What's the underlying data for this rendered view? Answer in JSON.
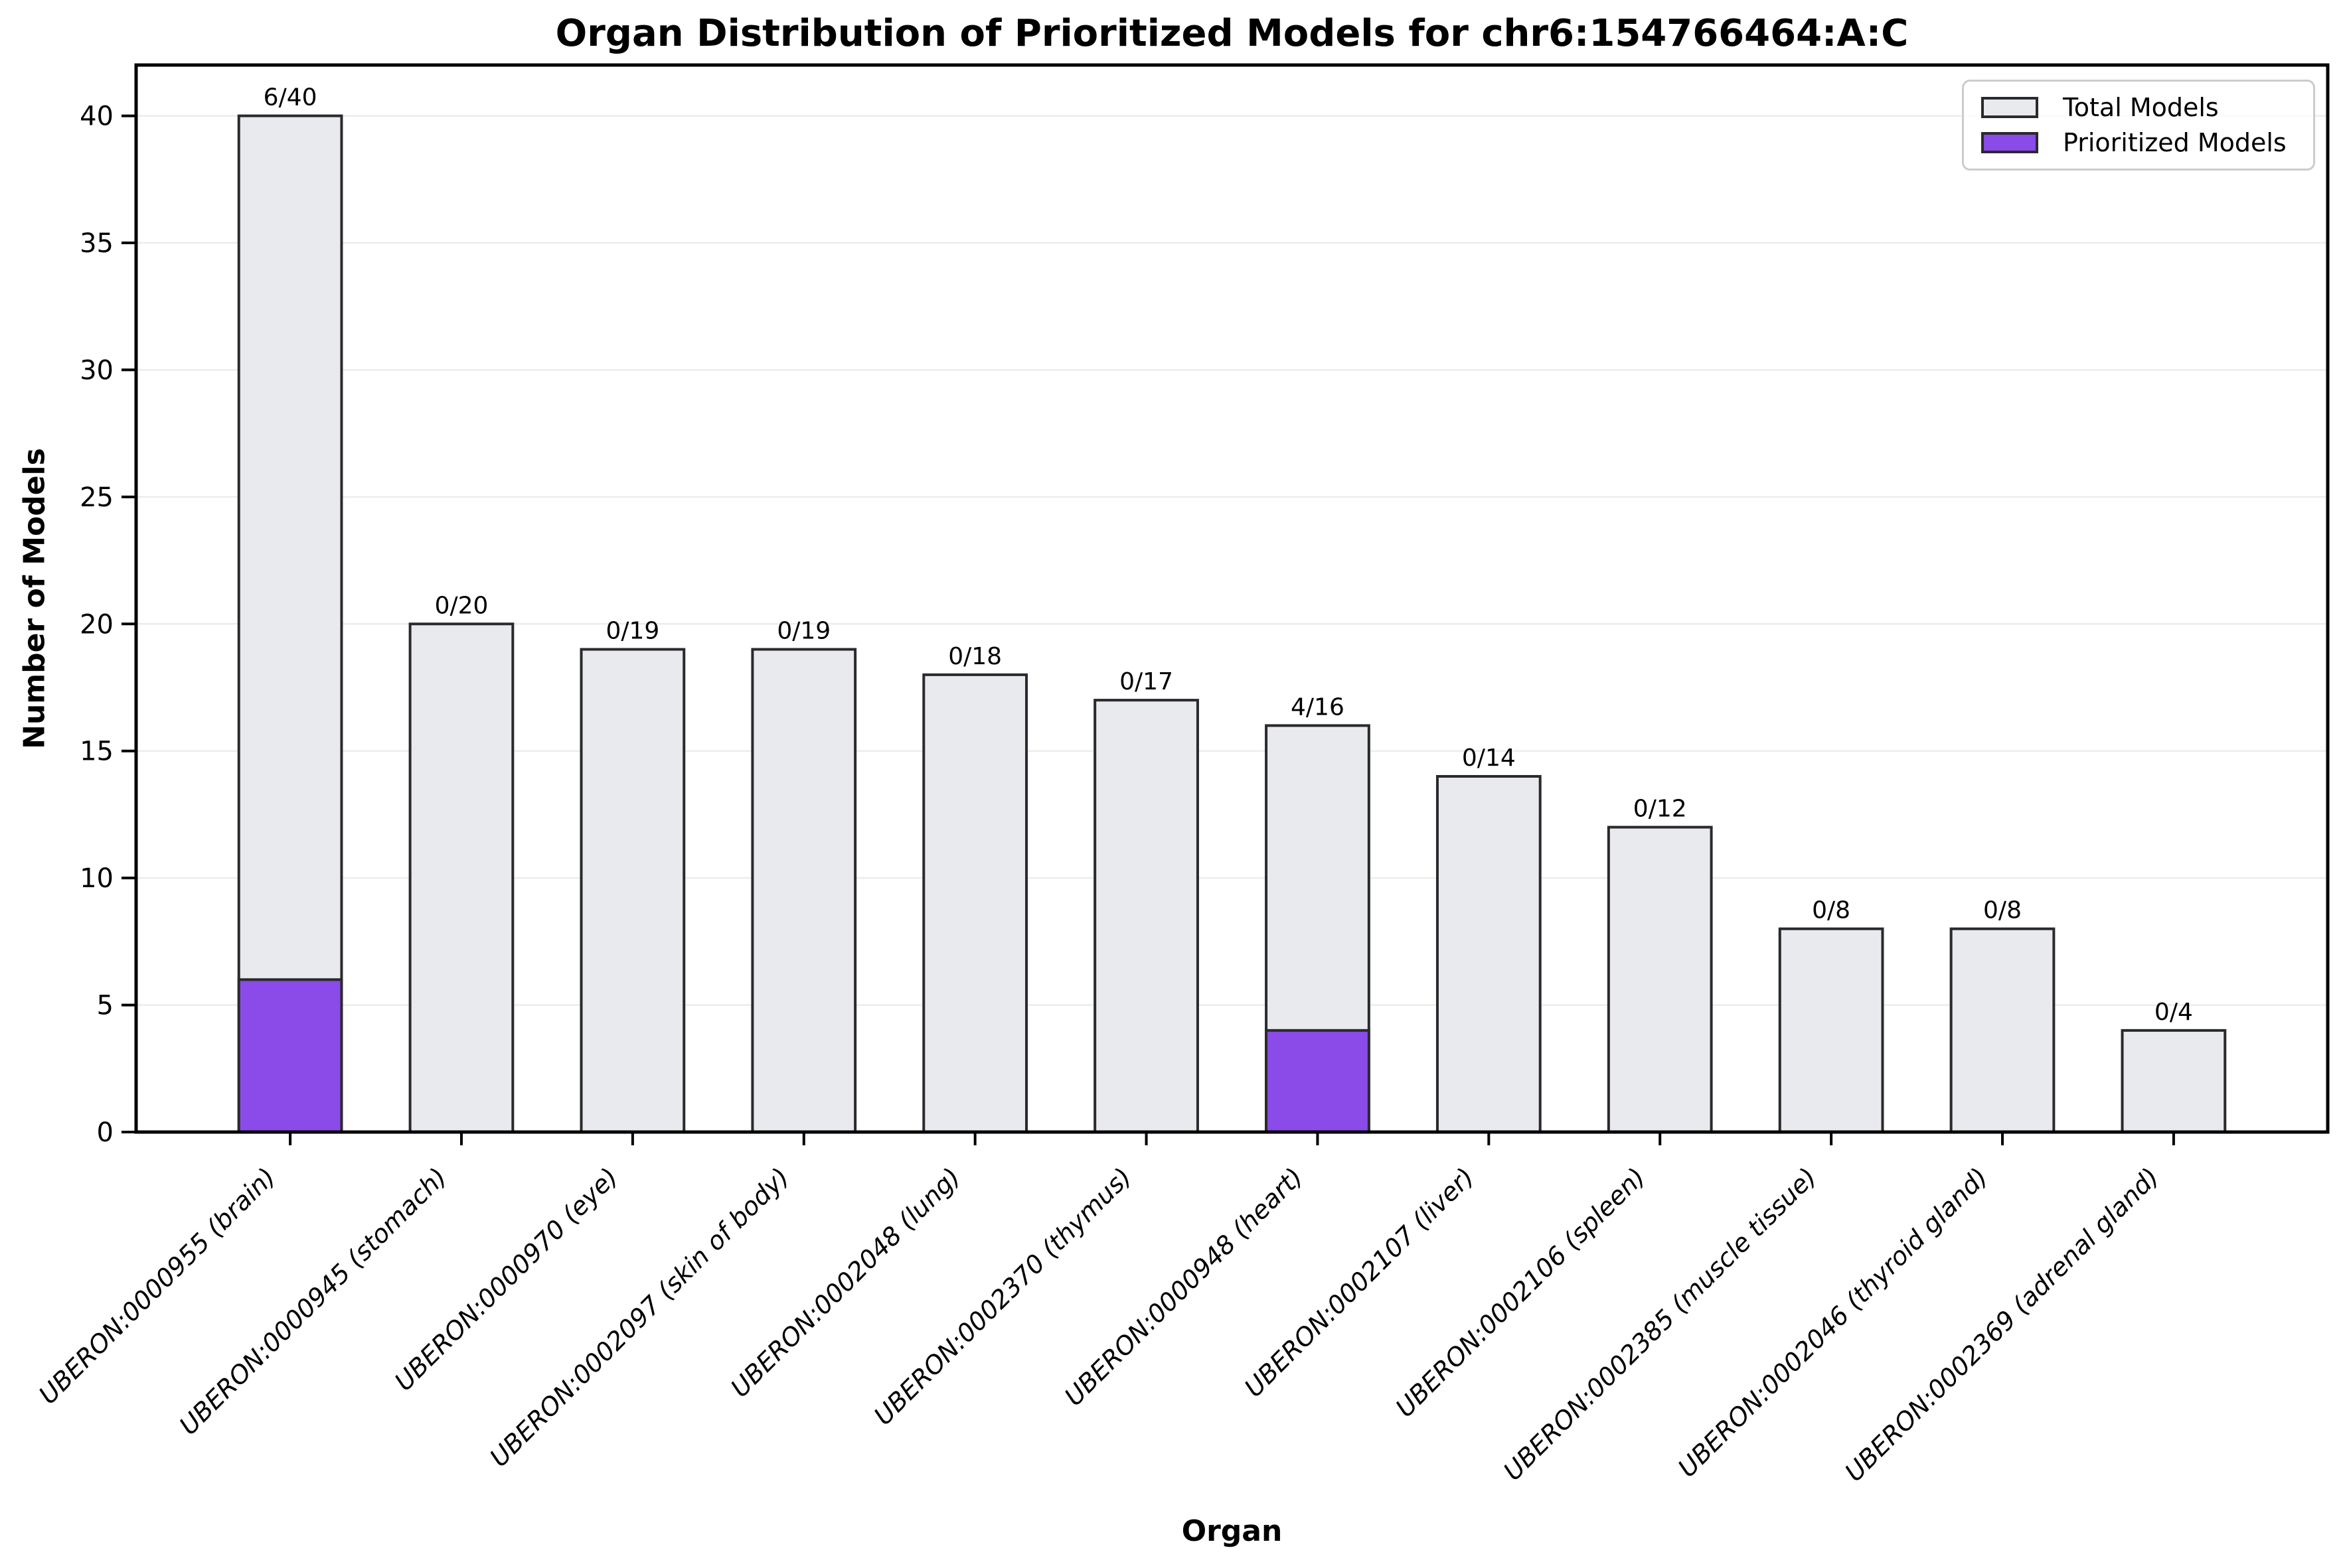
{
  "chart_data": {
    "type": "bar",
    "title": "Organ Distribution of Prioritized Models for chr6:154766464:A:C",
    "xlabel": "Organ",
    "ylabel": "Number of Models",
    "ylim": [
      0,
      42
    ],
    "yticks": [
      0,
      5,
      10,
      15,
      20,
      25,
      30,
      35,
      40
    ],
    "grid": "horizontal",
    "legend_position": "upper right",
    "categories": [
      "UBERON:0000955 (brain)",
      "UBERON:0000945 (stomach)",
      "UBERON:0000970 (eye)",
      "UBERON:0002097 (skin of body)",
      "UBERON:0002048 (lung)",
      "UBERON:0002370 (thymus)",
      "UBERON:0000948 (heart)",
      "UBERON:0002107 (liver)",
      "UBERON:0002106 (spleen)",
      "UBERON:0002385 (muscle tissue)",
      "UBERON:0002046 (thyroid gland)",
      "UBERON:0002369 (adrenal gland)"
    ],
    "series": [
      {
        "name": "Total Models",
        "values": [
          40,
          20,
          19,
          19,
          18,
          17,
          16,
          14,
          12,
          8,
          8,
          4
        ],
        "color": "#e9eaee"
      },
      {
        "name": "Prioritized Models",
        "values": [
          6,
          0,
          0,
          0,
          0,
          0,
          4,
          0,
          0,
          0,
          0,
          0
        ],
        "color": "#8a4be8"
      }
    ],
    "bar_labels": [
      "6/40",
      "0/20",
      "0/19",
      "0/19",
      "0/18",
      "0/17",
      "4/16",
      "0/14",
      "0/12",
      "0/8",
      "0/8",
      "0/4"
    ],
    "colors": {
      "bar_fill": "#e9eaee",
      "prioritized_fill": "#8a4be8",
      "bar_edge": "#2a2a2e",
      "grid": "#ececec",
      "spine": "#000000",
      "text": "#000000",
      "legend_border": "#cccccc"
    }
  }
}
